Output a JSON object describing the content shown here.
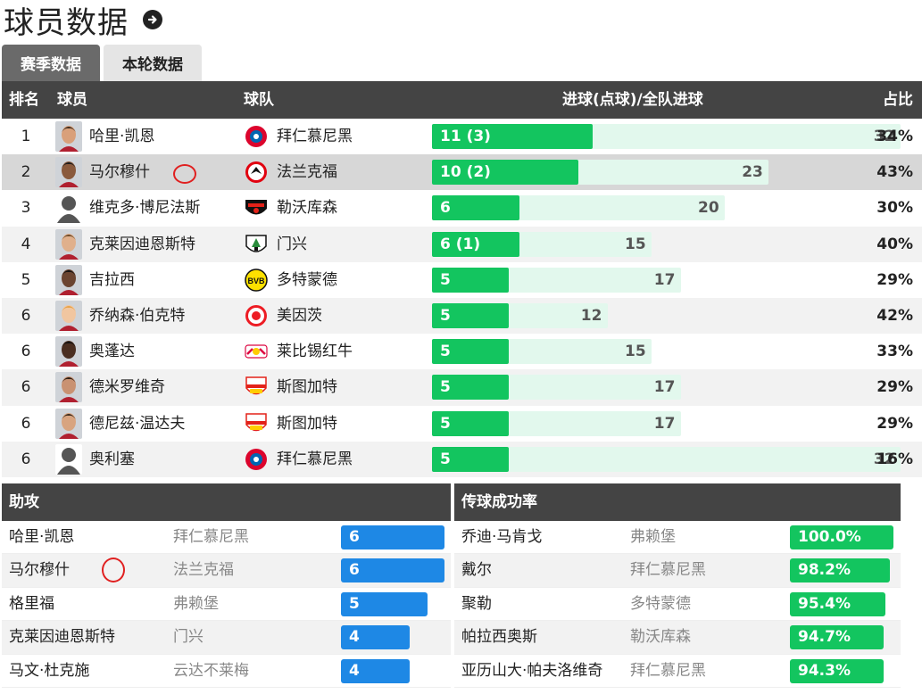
{
  "page": {
    "title": "球员数据"
  },
  "tabs": [
    {
      "label": "赛季数据",
      "active": true
    },
    {
      "label": "本轮数据",
      "active": false
    }
  ],
  "goals_table": {
    "headers": {
      "rank": "排名",
      "player": "球员",
      "team": "球队",
      "goals": "进球(点球)/全队进球",
      "share": "占比"
    },
    "rows": [
      {
        "rank": "1",
        "player": "哈里·凯恩",
        "team": "拜仁慕尼黑",
        "team_icon": "bayern-crest-icon",
        "goals_label": "11 (3)",
        "goals": 11,
        "team_goals": 32,
        "team_goals_label": "32",
        "share": "34%"
      },
      {
        "rank": "2",
        "player": "马尔穆什",
        "team": "法兰克福",
        "team_icon": "frankfurt-crest-icon",
        "goals_label": "10 (2)",
        "goals": 10,
        "team_goals": 23,
        "team_goals_label": "23",
        "share": "43%",
        "highlighted": true
      },
      {
        "rank": "3",
        "player": "维克多·博尼法斯",
        "team": "勒沃库森",
        "team_icon": "leverkusen-crest-icon",
        "goals_label": "6",
        "goals": 6,
        "team_goals": 20,
        "team_goals_label": "20",
        "share": "30%"
      },
      {
        "rank": "4",
        "player": "克莱因迪恩斯特",
        "team": "门兴",
        "team_icon": "gladbach-crest-icon",
        "goals_label": "6 (1)",
        "goals": 6,
        "team_goals": 15,
        "team_goals_label": "15",
        "share": "40%"
      },
      {
        "rank": "5",
        "player": "吉拉西",
        "team": "多特蒙德",
        "team_icon": "dortmund-crest-icon",
        "goals_label": "5",
        "goals": 5,
        "team_goals": 17,
        "team_goals_label": "17",
        "share": "29%"
      },
      {
        "rank": "6",
        "player": "乔纳森·伯克特",
        "team": "美因茨",
        "team_icon": "mainz-crest-icon",
        "goals_label": "5",
        "goals": 5,
        "team_goals": 12,
        "team_goals_label": "12",
        "share": "42%"
      },
      {
        "rank": "6",
        "player": "奥蓬达",
        "team": "莱比锡红牛",
        "team_icon": "leipzig-crest-icon",
        "goals_label": "5",
        "goals": 5,
        "team_goals": 15,
        "team_goals_label": "15",
        "share": "33%"
      },
      {
        "rank": "6",
        "player": "德米罗维奇",
        "team": "斯图加特",
        "team_icon": "stuttgart-crest-icon",
        "goals_label": "5",
        "goals": 5,
        "team_goals": 17,
        "team_goals_label": "17",
        "share": "29%"
      },
      {
        "rank": "6",
        "player": "德尼兹·温达夫",
        "team": "斯图加特",
        "team_icon": "stuttgart-crest-icon",
        "goals_label": "5",
        "goals": 5,
        "team_goals": 17,
        "team_goals_label": "17",
        "share": "29%"
      },
      {
        "rank": "6",
        "player": "奥利塞",
        "team": "拜仁慕尼黑",
        "team_icon": "bayern-crest-icon",
        "goals_label": "5",
        "goals": 5,
        "team_goals": 32,
        "team_goals_label": "32",
        "share": "16%"
      }
    ]
  },
  "assists": {
    "title": "助攻",
    "rows": [
      {
        "player": "哈里·凯恩",
        "team": "拜仁慕尼黑",
        "value": "6",
        "level": 6
      },
      {
        "player": "马尔穆什",
        "team": "法兰克福",
        "value": "6",
        "level": 6
      },
      {
        "player": "格里福",
        "team": "弗赖堡",
        "value": "5",
        "level": 5
      },
      {
        "player": "克莱因迪恩斯特",
        "team": "门兴",
        "value": "4",
        "level": 4
      },
      {
        "player": "马文·杜克施",
        "team": "云达不莱梅",
        "value": "4",
        "level": 4
      }
    ]
  },
  "passing": {
    "title": "传球成功率",
    "rows": [
      {
        "player": "乔迪·马肯戈",
        "team": "弗赖堡",
        "value": "100.0%",
        "level": 100.0
      },
      {
        "player": "戴尔",
        "team": "拜仁慕尼黑",
        "value": "98.2%",
        "level": 98.2
      },
      {
        "player": "聚勒",
        "team": "多特蒙德",
        "value": "95.4%",
        "level": 95.4
      },
      {
        "player": "帕拉西奥斯",
        "team": "勒沃库森",
        "value": "94.7%",
        "level": 94.7
      },
      {
        "player": "亚历山大·帕夫洛维奇",
        "team": "拜仁慕尼黑",
        "value": "94.3%",
        "level": 94.3
      }
    ]
  },
  "colors": {
    "header_bg": "#444444",
    "goal_fill": "#13c55f",
    "goal_track": "#e2f8ed",
    "assist_bar": "#1e88e5",
    "pass_bar": "#13c55f",
    "highlight_row": "#d7d7d7",
    "annotation_circle": "#e02020"
  }
}
